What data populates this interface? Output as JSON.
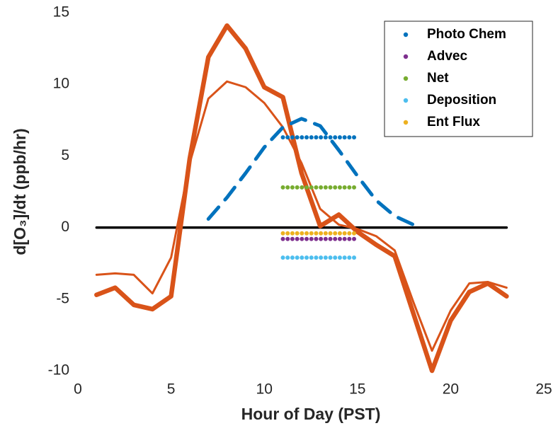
{
  "chart_data": {
    "type": "line",
    "xlabel": "Hour of Day (PST)",
    "ylabel": "d[O₃]/dt (ppb/hr)",
    "xlim": [
      0,
      25
    ],
    "xticks": [
      0,
      5,
      10,
      15,
      20,
      25
    ],
    "ylim": [
      -10,
      15
    ],
    "yticks": [
      -10,
      -5,
      0,
      5,
      10,
      15
    ],
    "legend": "upper right",
    "series": [
      {
        "color": "#000000",
        "style": "solid",
        "x": [
          1,
          23
        ],
        "values": [
          0,
          0
        ]
      },
      {
        "color": "#d95319",
        "style": "thin",
        "x": [
          1,
          2,
          3,
          4,
          5,
          6,
          7,
          8,
          9,
          10,
          11,
          12,
          13,
          14,
          15,
          16,
          17,
          18,
          19,
          20,
          21,
          22,
          23
        ],
        "values": [
          -3.3,
          -3.2,
          -3.3,
          -4.6,
          -2.1,
          4.5,
          9.0,
          10.2,
          9.8,
          8.7,
          7.0,
          4.5,
          1.3,
          0.2,
          -0.1,
          -0.6,
          -1.6,
          -5.2,
          -8.6,
          -5.8,
          -3.9,
          -3.8,
          -4.2
        ]
      },
      {
        "color": "#d95319",
        "style": "thick",
        "x": [
          1,
          2,
          3,
          4,
          5,
          6,
          7,
          8,
          9,
          10,
          11,
          12,
          13,
          14,
          15,
          16,
          17,
          18,
          19,
          20,
          21,
          22,
          23
        ],
        "values": [
          -4.7,
          -4.2,
          -5.4,
          -5.7,
          -4.8,
          4.8,
          11.9,
          14.1,
          12.5,
          9.8,
          9.1,
          3.8,
          0.1,
          0.9,
          -0.3,
          -1.2,
          -2.0,
          -6.0,
          -10.0,
          -6.5,
          -4.5,
          -3.9,
          -4.8
        ]
      },
      {
        "color": "#0072bd",
        "style": "dashed",
        "x": [
          7,
          8,
          9,
          10,
          11,
          12,
          13,
          14,
          15,
          16,
          17,
          18
        ],
        "values": [
          0.6,
          2.1,
          3.8,
          5.6,
          7.0,
          7.6,
          7.1,
          5.4,
          3.6,
          1.9,
          0.8,
          0.2
        ]
      },
      {
        "name": "Photo Chem",
        "color": "#0072bd",
        "style": "dotted",
        "x": [
          11,
          15
        ],
        "values": [
          6.3,
          6.3
        ]
      },
      {
        "name": "Advec",
        "color": "#7e2f8e",
        "style": "dotted",
        "x": [
          11,
          15
        ],
        "values": [
          -0.8,
          -0.8
        ]
      },
      {
        "name": "Net",
        "color": "#77ac30",
        "style": "dotted",
        "x": [
          11,
          15
        ],
        "values": [
          2.8,
          2.8
        ]
      },
      {
        "name": "Deposition",
        "color": "#4dbeee",
        "style": "dotted",
        "x": [
          11,
          15
        ],
        "values": [
          -2.1,
          -2.1
        ]
      },
      {
        "name": "Ent Flux",
        "color": "#edb120",
        "style": "dotted",
        "x": [
          11,
          15
        ],
        "values": [
          -0.4,
          -0.4
        ]
      }
    ]
  }
}
